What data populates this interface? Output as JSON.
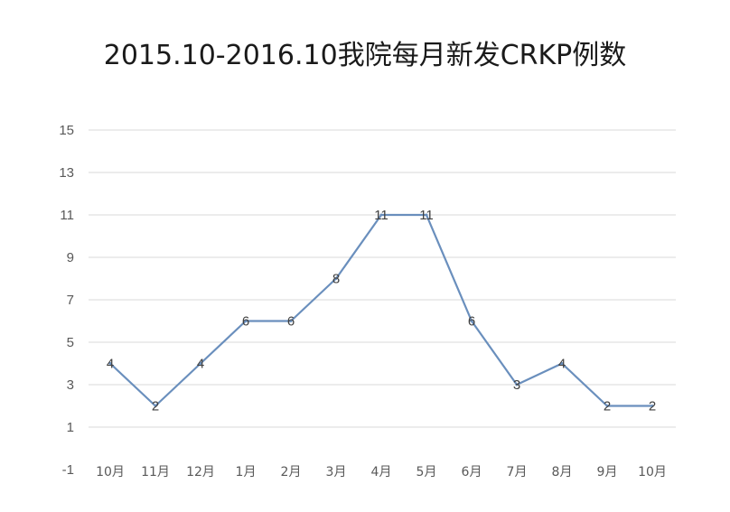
{
  "chart_data": {
    "type": "line",
    "title": "2015.10-2016.10我院每月新发CRKP例数",
    "categories": [
      "10月",
      "11月",
      "12月",
      "1月",
      "2月",
      "3月",
      "4月",
      "5月",
      "6月",
      "7月",
      "8月",
      "9月",
      "10月"
    ],
    "series": [
      {
        "values": [
          4,
          2,
          4,
          6,
          6,
          8,
          11,
          11,
          6,
          3,
          4,
          2,
          2
        ]
      }
    ],
    "yticks": [
      -1,
      1,
      3,
      5,
      7,
      9,
      11,
      13,
      15
    ],
    "ylim": [
      -1,
      15
    ],
    "grid": true,
    "line_color": "#6a8fbd",
    "grid_color": "#d9d9d9"
  }
}
